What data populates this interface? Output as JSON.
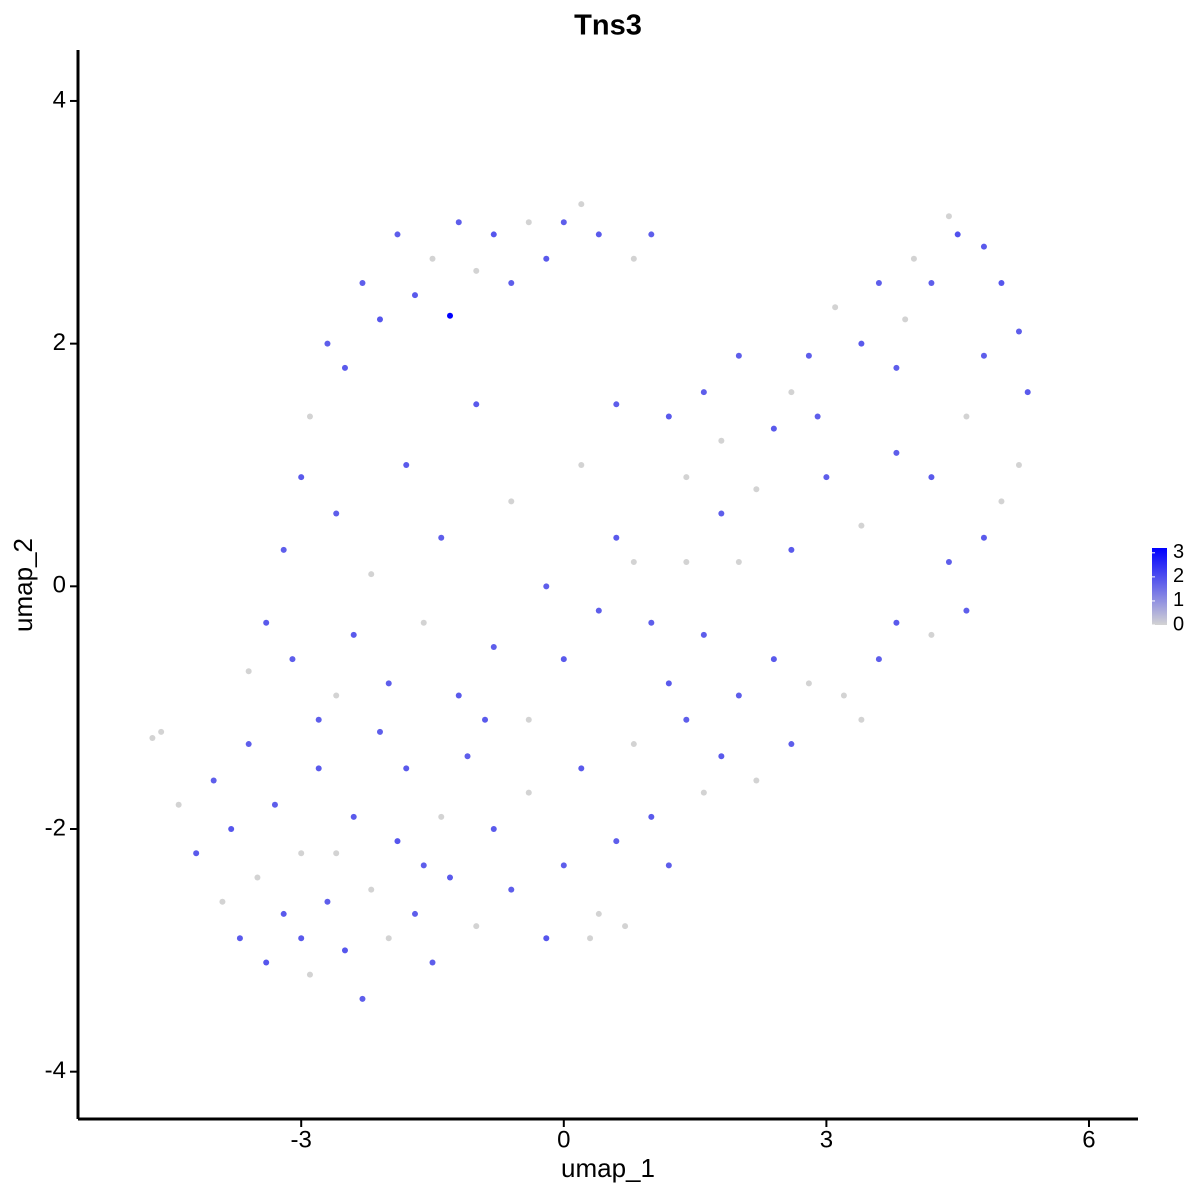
{
  "chart_data": {
    "type": "scatter",
    "title": "Tns3",
    "x_label": "umap_1",
    "y_label": "umap_2",
    "xlim": [
      -5.55,
      6.56
    ],
    "ylim": [
      -4.39,
      4.42
    ],
    "xticks": [
      -3,
      0,
      3,
      6
    ],
    "yticks": [
      4,
      2,
      0,
      -2,
      -4
    ],
    "color_low": "#d3d3d3",
    "color_high": "#0000ff",
    "colorlim": [
      0,
      3.2
    ],
    "colorticks": [
      3,
      2,
      1,
      0
    ],
    "x": [
      -4.7,
      -4.6,
      -4.4,
      -4.2,
      -4.0,
      -3.9,
      -3.8,
      -3.7,
      -3.6,
      -3.5,
      -3.4,
      -3.3,
      -3.2,
      -3.1,
      -3.0,
      -2.9,
      -2.8,
      -2.7,
      -2.6,
      -2.5,
      -2.4,
      -2.3,
      -2.2,
      -2.1,
      -2.0,
      -1.9,
      -1.8,
      -1.7,
      -1.5,
      -1.4,
      -1.3,
      -1.1,
      -1.0,
      -0.8,
      -0.6,
      -0.4,
      -0.2,
      0,
      0.2,
      0.4,
      0.6,
      0.8,
      1.0,
      1.2,
      1.4,
      1.6,
      1.8,
      2.0,
      2.2,
      2.4,
      2.6,
      2.8,
      3.2,
      3.4,
      3.6,
      3.8,
      4.2,
      4.4,
      4.6,
      4.8,
      5.0,
      5.2,
      5.3,
      5.2,
      5.0,
      4.8,
      4.5,
      4.4,
      4.2,
      3.9,
      3.6,
      3.4,
      3.1,
      2.8,
      2.6,
      2.4,
      2.0,
      1.8,
      1.6,
      1.4,
      1.2,
      1.0,
      0.8,
      0.6,
      0.4,
      0.2,
      0,
      -0.2,
      -0.4,
      -0.6,
      -0.8,
      -1.0,
      -1.2,
      -1.3,
      -1.5,
      -1.7,
      -1.9,
      -2.1,
      -2.3,
      -2.5,
      -2.7,
      -2.9,
      -3.0,
      -3.2,
      -3.4,
      -3.6,
      -2.6,
      -2.2,
      -1.8,
      -1.4,
      -1.0,
      -0.6,
      -0.2,
      0.2,
      0.6,
      1.0,
      1.4,
      1.8,
      2.2,
      2.6,
      3.0,
      3.4,
      3.8,
      4.2,
      4.6,
      4.8,
      -2.4,
      -2.0,
      -1.6,
      -1.2,
      -0.8,
      -0.4,
      0.0,
      0.4,
      0.8,
      1.2,
      1.6,
      2.0,
      -2.8,
      -3.0,
      -2.6,
      -1.6,
      -0.9,
      0.3,
      0.7,
      2.9,
      3.8,
      4.0
    ],
    "y": [
      -1.25,
      -1.2,
      -1.8,
      -2.2,
      -1.6,
      -2.6,
      -2.0,
      -2.9,
      -1.3,
      -2.4,
      -3.1,
      -1.8,
      -2.7,
      -0.6,
      -2.2,
      -3.2,
      -1.5,
      -2.6,
      -0.9,
      -3.0,
      -1.9,
      -3.4,
      -2.5,
      -1.2,
      -2.9,
      -2.1,
      -1.5,
      -2.7,
      -3.1,
      -1.9,
      -2.4,
      -1.4,
      -2.8,
      -2.0,
      -2.5,
      -1.7,
      -2.9,
      -2.3,
      -1.5,
      -2.7,
      -2.1,
      -1.3,
      -1.9,
      -2.3,
      -1.1,
      -1.7,
      -1.4,
      -0.9,
      -1.6,
      -0.6,
      -1.3,
      -0.8,
      -0.9,
      -1.1,
      -0.6,
      -0.3,
      -0.4,
      0.2,
      -0.2,
      0.4,
      0.7,
      1.0,
      1.6,
      2.1,
      2.5,
      2.8,
      2.9,
      3.05,
      2.5,
      2.2,
      2.5,
      2.0,
      2.3,
      1.9,
      1.6,
      1.3,
      1.9,
      1.2,
      1.6,
      0.9,
      1.4,
      2.9,
      2.7,
      1.5,
      2.9,
      3.15,
      3.0,
      2.7,
      3.0,
      2.5,
      2.9,
      2.6,
      3.0,
      2.23,
      2.7,
      2.4,
      2.9,
      2.2,
      2.5,
      1.8,
      2.0,
      1.4,
      0.9,
      0.3,
      -0.3,
      -0.7,
      0.6,
      0.1,
      1.0,
      0.4,
      1.5,
      0.7,
      0.0,
      1.0,
      0.4,
      -0.3,
      0.2,
      0.6,
      0.8,
      0.3,
      0.9,
      0.5,
      1.1,
      0.9,
      1.4,
      1.9,
      -0.4,
      -0.8,
      -0.3,
      -0.9,
      -0.5,
      -1.1,
      -0.6,
      -0.2,
      0.2,
      -0.8,
      -0.4,
      0.2,
      -1.1,
      -2.9,
      -2.2,
      -2.3,
      -1.1,
      -2.9,
      -2.8,
      1.4,
      1.8,
      2.7
    ],
    "values": [
      0,
      0,
      0,
      1.1,
      1.0,
      0,
      1.2,
      1.1,
      1.0,
      0,
      1.2,
      1.0,
      1.1,
      1.0,
      0,
      0,
      1.1,
      1.0,
      0,
      1.2,
      1.1,
      1.0,
      0,
      1.0,
      0,
      1.2,
      1.1,
      1.0,
      1.0,
      0,
      1.1,
      1.0,
      0,
      1.1,
      1.0,
      0,
      1.2,
      1.0,
      1.1,
      0,
      1.0,
      0,
      1.1,
      1.0,
      1.0,
      0,
      1.1,
      1.0,
      0,
      1.1,
      1.0,
      0,
      0,
      0,
      1.0,
      1.1,
      0,
      1.0,
      1.0,
      1.1,
      0,
      0,
      1.1,
      1.0,
      1.2,
      1.1,
      1.3,
      0,
      1.0,
      0,
      1.0,
      1.1,
      0,
      1.0,
      0,
      1.1,
      1.0,
      0,
      1.0,
      0,
      1.1,
      1.0,
      0,
      1.0,
      1.1,
      0,
      1.0,
      1.1,
      0,
      1.0,
      1.2,
      0,
      1.0,
      3.2,
      0,
      1.1,
      1.0,
      1.2,
      1.0,
      1.1,
      1.0,
      0,
      1.1,
      1.0,
      1.1,
      0,
      1.0,
      0,
      1.1,
      1.0,
      1.1,
      0,
      1.0,
      0,
      1.1,
      1.0,
      0,
      1.0,
      0,
      1.1,
      1.0,
      0,
      1.0,
      1.1,
      0,
      1.0,
      1.1,
      1.0,
      0,
      1.1,
      1.0,
      0,
      1.1,
      1.0,
      0,
      1.1,
      1.0,
      0,
      1.0,
      1.1,
      0,
      1.0,
      1.1,
      0,
      0,
      1.0,
      1.0,
      0
    ]
  }
}
